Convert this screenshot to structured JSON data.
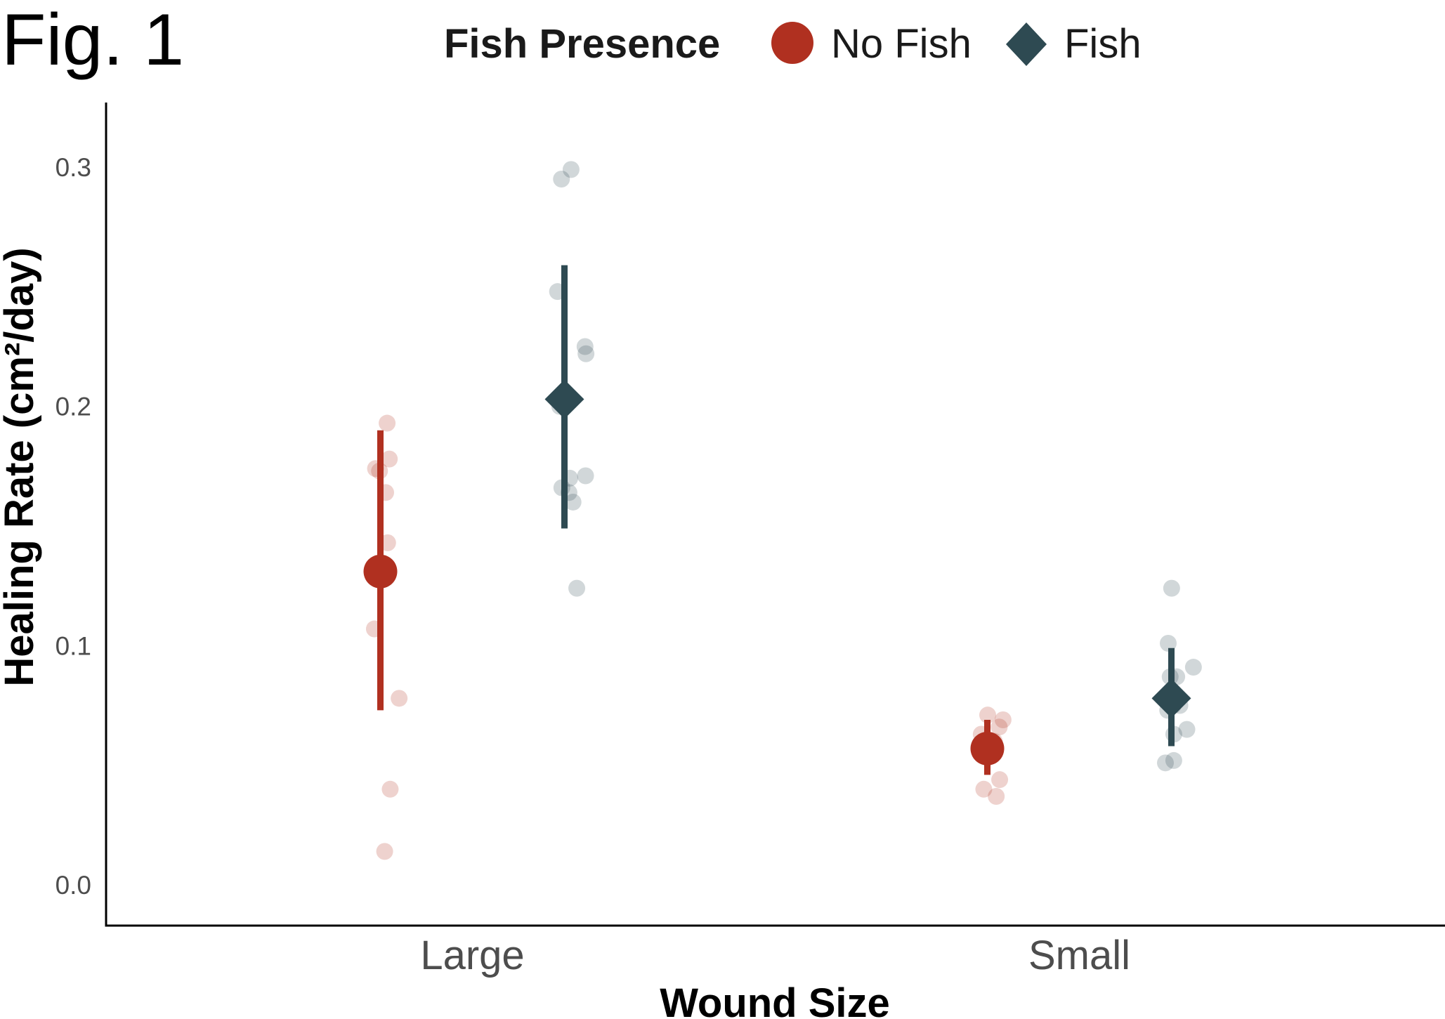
{
  "figure_label": "Fig. 1",
  "legend": {
    "title": "Fish Presence",
    "items": [
      {
        "label": "No Fish",
        "shape": "circle",
        "color": "#b03020"
      },
      {
        "label": "Fish",
        "shape": "diamond",
        "color": "#2e4a52"
      }
    ]
  },
  "chart_data": {
    "type": "scatter",
    "title": "",
    "xlabel": "Wound Size",
    "ylabel": "Healing Rate (cm²/day)",
    "categories": [
      "Large",
      "Small"
    ],
    "ylim": [
      -0.017,
      0.327
    ],
    "yticks": [
      0.0,
      0.1,
      0.2,
      0.3
    ],
    "ytick_labels": [
      "0.0",
      "0.1",
      "0.2",
      "0.3"
    ],
    "grid": false,
    "legend_position": "top",
    "series": [
      {
        "name": "No Fish",
        "shape": "circle",
        "color": "#b03020",
        "summary": [
          {
            "category": "Large",
            "mean": 0.131,
            "lower": 0.073,
            "upper": 0.19
          },
          {
            "category": "Small",
            "mean": 0.057,
            "lower": 0.046,
            "upper": 0.069
          }
        ],
        "raw": [
          {
            "category": "Large",
            "values": [
              0.193,
              0.178,
              0.174,
              0.173,
              0.164,
              0.143,
              0.107,
              0.078,
              0.04,
              0.014
            ]
          },
          {
            "category": "Small",
            "values": [
              0.071,
              0.069,
              0.066,
              0.063,
              0.06,
              0.058,
              0.044,
              0.04,
              0.037
            ]
          }
        ]
      },
      {
        "name": "Fish",
        "shape": "diamond",
        "color": "#2e4a52",
        "summary": [
          {
            "category": "Large",
            "mean": 0.203,
            "lower": 0.149,
            "upper": 0.259
          },
          {
            "category": "Small",
            "mean": 0.078,
            "lower": 0.058,
            "upper": 0.099
          }
        ],
        "raw": [
          {
            "category": "Large",
            "values": [
              0.299,
              0.295,
              0.248,
              0.225,
              0.222,
              0.2,
              0.17,
              0.171,
              0.166,
              0.164,
              0.16,
              0.124
            ]
          },
          {
            "category": "Small",
            "values": [
              0.124,
              0.101,
              0.091,
              0.087,
              0.087,
              0.075,
              0.075,
              0.073,
              0.065,
              0.063,
              0.052,
              0.051
            ]
          }
        ]
      }
    ]
  }
}
